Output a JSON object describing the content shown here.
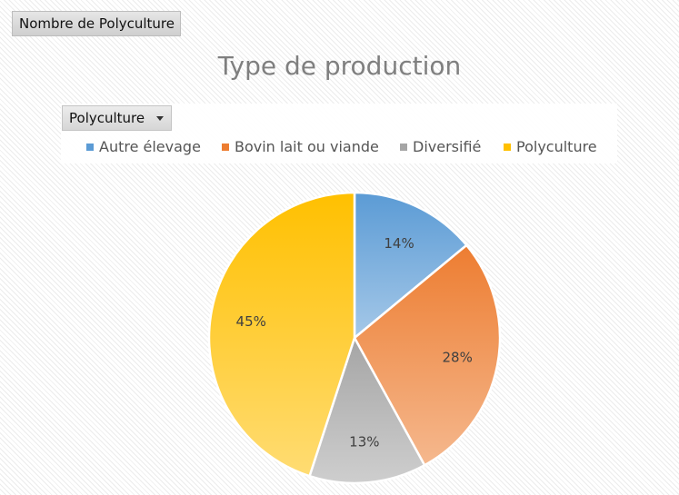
{
  "field_button": {
    "label": "Nombre de Polyculture"
  },
  "filter_button": {
    "label": "Polyculture"
  },
  "chart_data": {
    "type": "pie",
    "title": "Type de production",
    "categories": [
      "Autre élevage",
      "Bovin lait ou viande",
      "Diversifié",
      "Polyculture"
    ],
    "values": [
      14,
      28,
      13,
      45
    ],
    "labels": [
      "14%",
      "28%",
      "13%",
      "45%"
    ],
    "colors": [
      "#5b9bd5",
      "#ed7d31",
      "#a5a5a5",
      "#ffc000"
    ],
    "legend_position": "top"
  }
}
